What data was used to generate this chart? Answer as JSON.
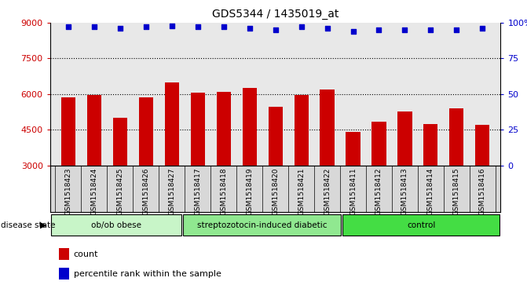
{
  "title": "GDS5344 / 1435019_at",
  "samples": [
    "GSM1518423",
    "GSM1518424",
    "GSM1518425",
    "GSM1518426",
    "GSM1518427",
    "GSM1518417",
    "GSM1518418",
    "GSM1518419",
    "GSM1518420",
    "GSM1518421",
    "GSM1518422",
    "GSM1518411",
    "GSM1518412",
    "GSM1518413",
    "GSM1518414",
    "GSM1518415",
    "GSM1518416"
  ],
  "counts": [
    5850,
    5950,
    5000,
    5850,
    6500,
    6050,
    6100,
    6250,
    5450,
    5950,
    6200,
    4400,
    4850,
    5250,
    4750,
    5400,
    4700
  ],
  "percentile_ranks": [
    97,
    97,
    96,
    97,
    98,
    97,
    97,
    96,
    95,
    97,
    96,
    94,
    95,
    95,
    95,
    95,
    96
  ],
  "groups": [
    {
      "label": "ob/ob obese",
      "start": 0,
      "end": 5,
      "color": "#c8f5c8"
    },
    {
      "label": "streptozotocin-induced diabetic",
      "start": 5,
      "end": 11,
      "color": "#90e890"
    },
    {
      "label": "control",
      "start": 11,
      "end": 17,
      "color": "#44dd44"
    }
  ],
  "bar_color": "#cc0000",
  "dot_color": "#0000cc",
  "ylim_left": [
    3000,
    9000
  ],
  "ylim_right": [
    0,
    100
  ],
  "yticks_left": [
    3000,
    4500,
    6000,
    7500,
    9000
  ],
  "yticks_right": [
    0,
    25,
    50,
    75,
    100
  ],
  "grid_values": [
    4500,
    6000,
    7500
  ],
  "bg_color": "#d8d8d8",
  "plot_bg": "#e8e8e8",
  "legend_count_color": "#cc0000",
  "legend_dot_color": "#0000cc"
}
